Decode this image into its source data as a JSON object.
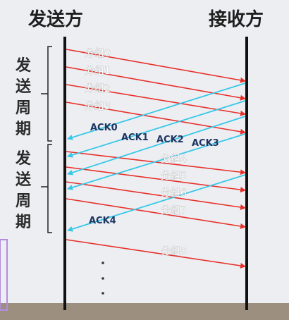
{
  "header": {
    "sender": "发送方",
    "receiver": "接收方"
  },
  "cycles": [
    {
      "label": [
        "发",
        "送",
        "周",
        "期"
      ]
    },
    {
      "label": [
        "发",
        "送",
        "周",
        "期"
      ]
    }
  ],
  "packets": [
    {
      "label": "分组0"
    },
    {
      "label": "分组1"
    },
    {
      "label": "分组2"
    },
    {
      "label": "分组3"
    },
    {
      "label": "分组4"
    },
    {
      "label": "分组5"
    },
    {
      "label": "分组6"
    },
    {
      "label": "分组7"
    },
    {
      "label": "分组8"
    }
  ],
  "acks": [
    {
      "label": "ACK0"
    },
    {
      "label": "ACK1"
    },
    {
      "label": "ACK2"
    },
    {
      "label": "ACK3"
    },
    {
      "label": "ACK4"
    }
  ],
  "colors": {
    "packet_arrow": "#e8302a",
    "ack_arrow": "#38c8e8",
    "timeline": "#111111"
  }
}
